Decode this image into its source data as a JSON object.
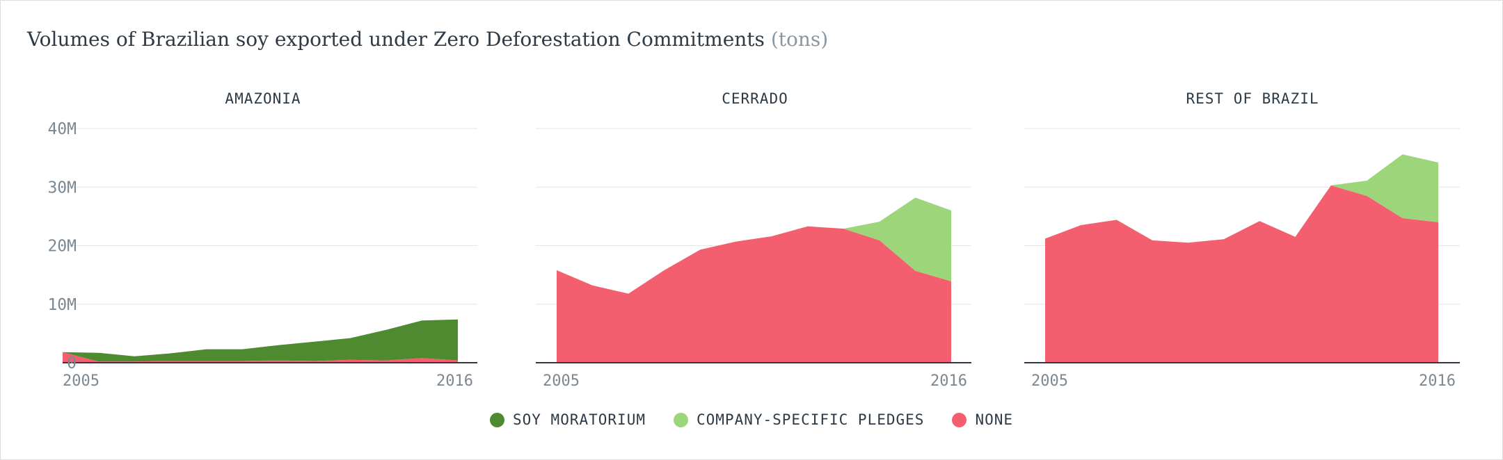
{
  "title": "Volumes of Brazilian soy exported under Zero Deforestation Commitments",
  "title_unit": "(tons)",
  "legend": [
    {
      "key": "soy_moratorium",
      "label": "SOY MORATORIUM",
      "color": "#4e8a2f"
    },
    {
      "key": "company_pledges",
      "label": "COMPANY-SPECIFIC PLEDGES",
      "color": "#9dd67a"
    },
    {
      "key": "none",
      "label": "NONE",
      "color": "#f45f6f"
    }
  ],
  "chart_data": [
    {
      "type": "area",
      "stacked": true,
      "title": "AMAZONIA",
      "x": [
        2005,
        2006,
        2007,
        2008,
        2009,
        2010,
        2011,
        2012,
        2013,
        2014,
        2015,
        2016
      ],
      "x_tick_labels": [
        "2005",
        "2016"
      ],
      "ylim": [
        0,
        40000000
      ],
      "y_ticks": [
        0,
        10000000,
        20000000,
        30000000,
        40000000
      ],
      "y_tick_labels": [
        "0",
        "10M",
        "20M",
        "30M",
        "40M"
      ],
      "grid": true,
      "series": [
        {
          "name": "NONE",
          "color": "#f45f6f",
          "values": [
            1800000,
            200000,
            200000,
            300000,
            300000,
            300000,
            400000,
            300000,
            500000,
            400000,
            800000,
            400000
          ]
        },
        {
          "name": "COMPANY-SPECIFIC PLEDGES",
          "color": "#9dd67a",
          "values": [
            0,
            0,
            0,
            0,
            0,
            0,
            0,
            0,
            0,
            0,
            0,
            0
          ]
        },
        {
          "name": "SOY MORATORIUM",
          "color": "#4e8a2f",
          "values": [
            0,
            1500000,
            900000,
            1300000,
            2000000,
            2000000,
            2600000,
            3300000,
            3700000,
            5200000,
            6400000,
            7000000
          ]
        }
      ]
    },
    {
      "type": "area",
      "stacked": true,
      "title": "CERRADO",
      "x": [
        2005,
        2006,
        2007,
        2008,
        2009,
        2010,
        2011,
        2012,
        2013,
        2014,
        2015,
        2016
      ],
      "x_tick_labels": [
        "2005",
        "2016"
      ],
      "ylim": [
        0,
        40000000
      ],
      "y_ticks": [
        0,
        10000000,
        20000000,
        30000000,
        40000000
      ],
      "grid": true,
      "series": [
        {
          "name": "NONE",
          "color": "#f45f6f",
          "values": [
            15800000,
            13200000,
            11800000,
            15800000,
            19300000,
            20700000,
            21600000,
            23300000,
            22900000,
            20900000,
            15700000,
            13900000
          ]
        },
        {
          "name": "COMPANY-SPECIFIC PLEDGES",
          "color": "#9dd67a",
          "values": [
            0,
            0,
            0,
            0,
            0,
            0,
            0,
            0,
            0,
            3200000,
            12500000,
            12100000
          ]
        },
        {
          "name": "SOY MORATORIUM",
          "color": "#4e8a2f",
          "values": [
            0,
            0,
            0,
            0,
            0,
            0,
            0,
            0,
            0,
            0,
            0,
            0
          ]
        }
      ]
    },
    {
      "type": "area",
      "stacked": true,
      "title": "REST OF BRAZIL",
      "x": [
        2005,
        2006,
        2007,
        2008,
        2009,
        2010,
        2011,
        2012,
        2013,
        2014,
        2015,
        2016
      ],
      "x_tick_labels": [
        "2005",
        "2016"
      ],
      "ylim": [
        0,
        40000000
      ],
      "y_ticks": [
        0,
        10000000,
        20000000,
        30000000,
        40000000
      ],
      "grid": true,
      "series": [
        {
          "name": "NONE",
          "color": "#f45f6f",
          "values": [
            21200000,
            23500000,
            24400000,
            20900000,
            20500000,
            21100000,
            24200000,
            21500000,
            30300000,
            28500000,
            24700000,
            24000000
          ]
        },
        {
          "name": "COMPANY-SPECIFIC PLEDGES",
          "color": "#9dd67a",
          "values": [
            0,
            0,
            0,
            0,
            0,
            0,
            0,
            0,
            0,
            2600000,
            10900000,
            10200000
          ]
        },
        {
          "name": "SOY MORATORIUM",
          "color": "#4e8a2f",
          "values": [
            0,
            0,
            0,
            0,
            0,
            0,
            0,
            0,
            0,
            0,
            0,
            0
          ]
        }
      ]
    }
  ]
}
